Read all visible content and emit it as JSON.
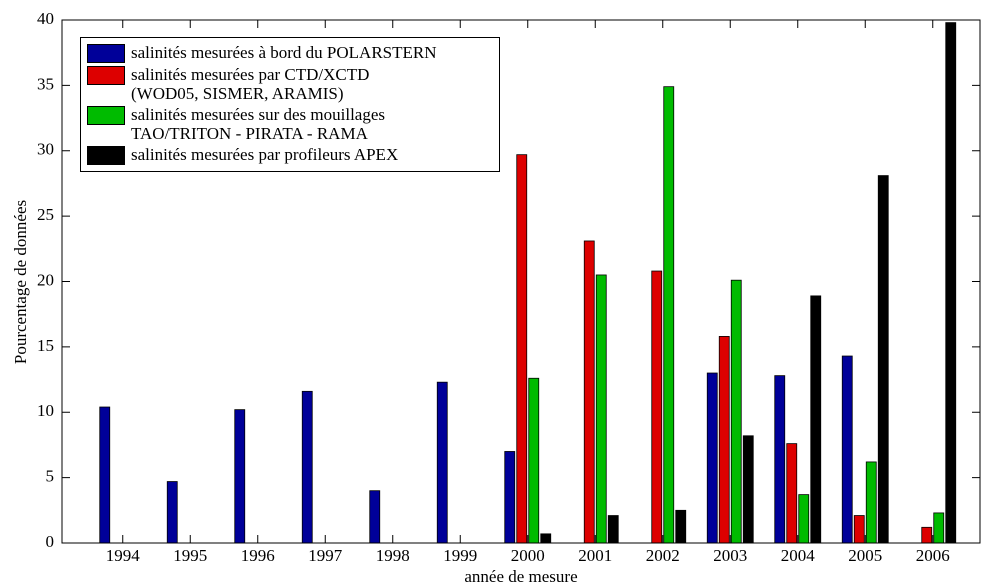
{
  "chart_data": {
    "type": "bar",
    "xlabel": "année de mesure",
    "ylabel": "Pourcentage de données",
    "x": [
      1994,
      1995,
      1996,
      1997,
      1998,
      1999,
      2000,
      2001,
      2002,
      2003,
      2004,
      2005,
      2006
    ],
    "xlim": [
      1993.1,
      2006.7
    ],
    "xticks": [
      1994,
      1995,
      1996,
      1997,
      1998,
      1999,
      2000,
      2001,
      2002,
      2003,
      2004,
      2005,
      2006
    ],
    "ylim": [
      0,
      40
    ],
    "yticks": [
      0,
      5,
      10,
      15,
      20,
      25,
      30,
      35,
      40
    ],
    "legend": "upper left",
    "series": [
      {
        "name": "salinités mesurées à bord du POLARSTERN",
        "color": "#000099",
        "values": [
          10.4,
          4.7,
          10.2,
          11.6,
          4.0,
          12.3,
          7.0,
          0,
          0,
          13.0,
          12.8,
          14.3,
          0
        ]
      },
      {
        "name": "salinités mesurées par CTD/XCTD\n(WOD05, SISMER, ARAMIS)",
        "color": "#dd0000",
        "values": [
          0,
          0,
          0,
          0,
          0,
          0,
          29.7,
          23.1,
          20.8,
          15.8,
          7.6,
          2.1,
          1.2
        ]
      },
      {
        "name": "salinités mesurées sur des mouillages\nTAO/TRITON - PIRATA - RAMA",
        "color": "#00bb00",
        "values": [
          0,
          0,
          0,
          0,
          0,
          0,
          12.6,
          20.5,
          34.9,
          20.1,
          3.7,
          6.2,
          2.3
        ]
      },
      {
        "name": "salinités mesurées par profileurs APEX",
        "color": "#000000",
        "values": [
          0,
          0,
          0,
          0,
          0,
          0,
          0.7,
          2.1,
          2.5,
          8.2,
          18.9,
          28.1,
          39.8
        ]
      }
    ]
  }
}
